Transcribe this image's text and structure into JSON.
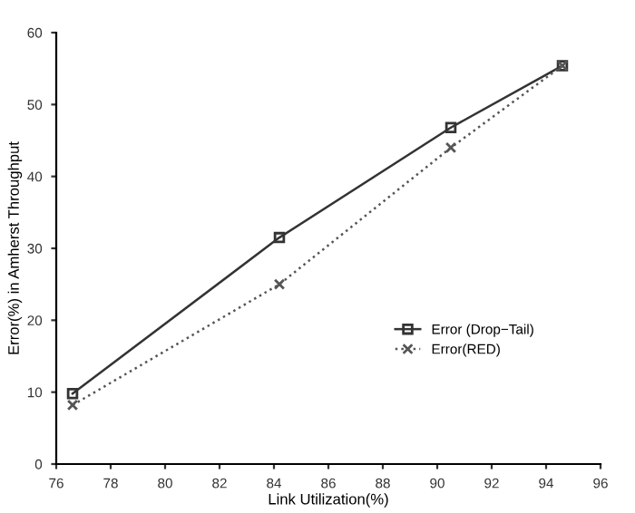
{
  "chart_data": {
    "type": "line",
    "xlabel": "Link Utilization(%)",
    "ylabel": "Error(%) in Amherst Throughput",
    "x": [
      76.6,
      84.2,
      90.5,
      94.6
    ],
    "series": [
      {
        "name": "Error (Drop−Tail)",
        "color": "#333333",
        "values": [
          9.8,
          31.5,
          46.8,
          55.4
        ],
        "marker": "square",
        "line_style": "solid"
      },
      {
        "name": "Error(RED)",
        "color": "#555555",
        "values": [
          8.2,
          25,
          44,
          55.4
        ],
        "marker": "cross",
        "line_style": "dotted"
      }
    ],
    "xlim": [
      76,
      96
    ],
    "xticks": [
      76,
      78,
      80,
      82,
      84,
      86,
      88,
      90,
      92,
      94,
      96
    ],
    "ylim": [
      0,
      60
    ],
    "yticks": [
      0,
      10,
      20,
      30,
      40,
      50,
      60
    ],
    "grid": false,
    "legend": "bottom right"
  }
}
